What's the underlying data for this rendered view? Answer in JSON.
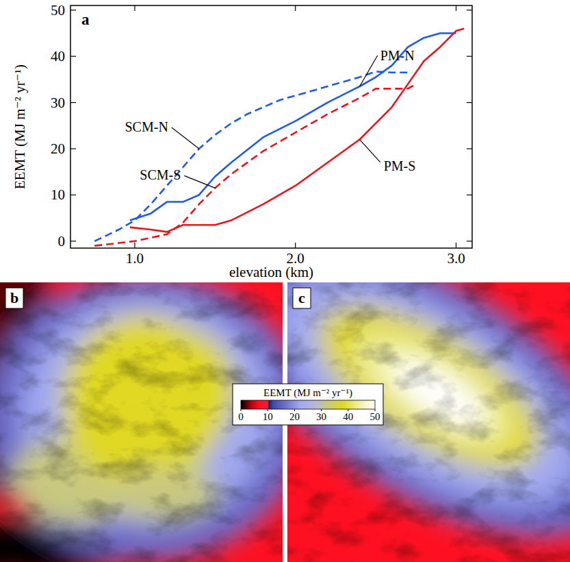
{
  "chart_data": [
    {
      "type": "line",
      "label": "a",
      "x_label": "elevation (km)",
      "y_label": "EEMT (MJ m⁻² yr⁻¹)",
      "xlim": [
        0.6,
        3.1
      ],
      "ylim": [
        -1.5,
        51
      ],
      "xticks": [
        {
          "value": 1,
          "label": "1.0"
        },
        {
          "value": 2,
          "label": "2.0"
        },
        {
          "value": 3,
          "label": "3.0"
        }
      ],
      "yticks": [
        0,
        10,
        20,
        30,
        40,
        50
      ],
      "series": [
        {
          "name": "SCM-N",
          "color": "#1f5ae6",
          "line_style": "dashed",
          "x": [
            0.75,
            0.9,
            1.0,
            1.1,
            1.2,
            1.3,
            1.4,
            1.5,
            1.6,
            1.7,
            1.8,
            1.9,
            2.0,
            2.2,
            2.4,
            2.5,
            2.6,
            2.7
          ],
          "values": [
            0,
            2.5,
            4.5,
            8,
            12,
            16,
            20,
            23,
            25.5,
            27.5,
            29,
            30.5,
            31.5,
            33.5,
            35.5,
            36.7,
            36.5,
            36.5
          ]
        },
        {
          "name": "SCM-S",
          "color": "#e8141e",
          "line_style": "dashed",
          "x": [
            0.75,
            1.0,
            1.2,
            1.3,
            1.4,
            1.5,
            1.6,
            1.8,
            2.0,
            2.2,
            2.4,
            2.5,
            2.6,
            2.7,
            2.75
          ],
          "values": [
            -1,
            0,
            1.5,
            4,
            8,
            11.5,
            14.5,
            19.5,
            23.5,
            27.5,
            31,
            33,
            33,
            33,
            34
          ]
        },
        {
          "name": "PM-N",
          "color": "#1f5ae6",
          "line_style": "solid",
          "x": [
            0.97,
            1.1,
            1.2,
            1.3,
            1.4,
            1.5,
            1.6,
            1.8,
            2.0,
            2.2,
            2.4,
            2.5,
            2.6,
            2.7,
            2.8,
            2.9,
            3.0
          ],
          "values": [
            4.5,
            6,
            8.5,
            8.5,
            10,
            14,
            17,
            22.5,
            26,
            30,
            33.5,
            35.5,
            38,
            42,
            44,
            45,
            45
          ]
        },
        {
          "name": "PM-S",
          "color": "#e8141e",
          "line_style": "solid",
          "x": [
            0.97,
            1.1,
            1.2,
            1.3,
            1.4,
            1.5,
            1.6,
            1.8,
            2.0,
            2.2,
            2.4,
            2.6,
            2.7,
            2.8,
            2.9,
            3.0,
            3.05
          ],
          "values": [
            3,
            2.5,
            2,
            3.5,
            3.5,
            3.5,
            4.5,
            8,
            12,
            17,
            22,
            29,
            34,
            39,
            42,
            45.5,
            46
          ]
        }
      ]
    },
    {
      "type": "map",
      "label": "b"
    },
    {
      "type": "map",
      "label": "c",
      "colorbar": {
        "label": "EEMT (MJ m⁻² yr⁻¹)",
        "range": [
          0,
          50
        ],
        "ticks": [
          0,
          10,
          20,
          30,
          40,
          50
        ],
        "stops": [
          {
            "value": 0,
            "color": "#000000"
          },
          {
            "value": 2,
            "color": "#5a0000"
          },
          {
            "value": 4,
            "color": "#c00010"
          },
          {
            "value": 7,
            "color": "#ff1020"
          },
          {
            "value": 10,
            "color": "#e0203a"
          },
          {
            "value": 10.5,
            "color": "#202060"
          },
          {
            "value": 12,
            "color": "#3a4ab0"
          },
          {
            "value": 16,
            "color": "#6a6ac8"
          },
          {
            "value": 22,
            "color": "#a0a8f0"
          },
          {
            "value": 28,
            "color": "#b8b8d8"
          },
          {
            "value": 32,
            "color": "#c8c880"
          },
          {
            "value": 38,
            "color": "#e0d820"
          },
          {
            "value": 44,
            "color": "#f0f0a0"
          },
          {
            "value": 50,
            "color": "#ffffff"
          }
        ]
      }
    }
  ]
}
